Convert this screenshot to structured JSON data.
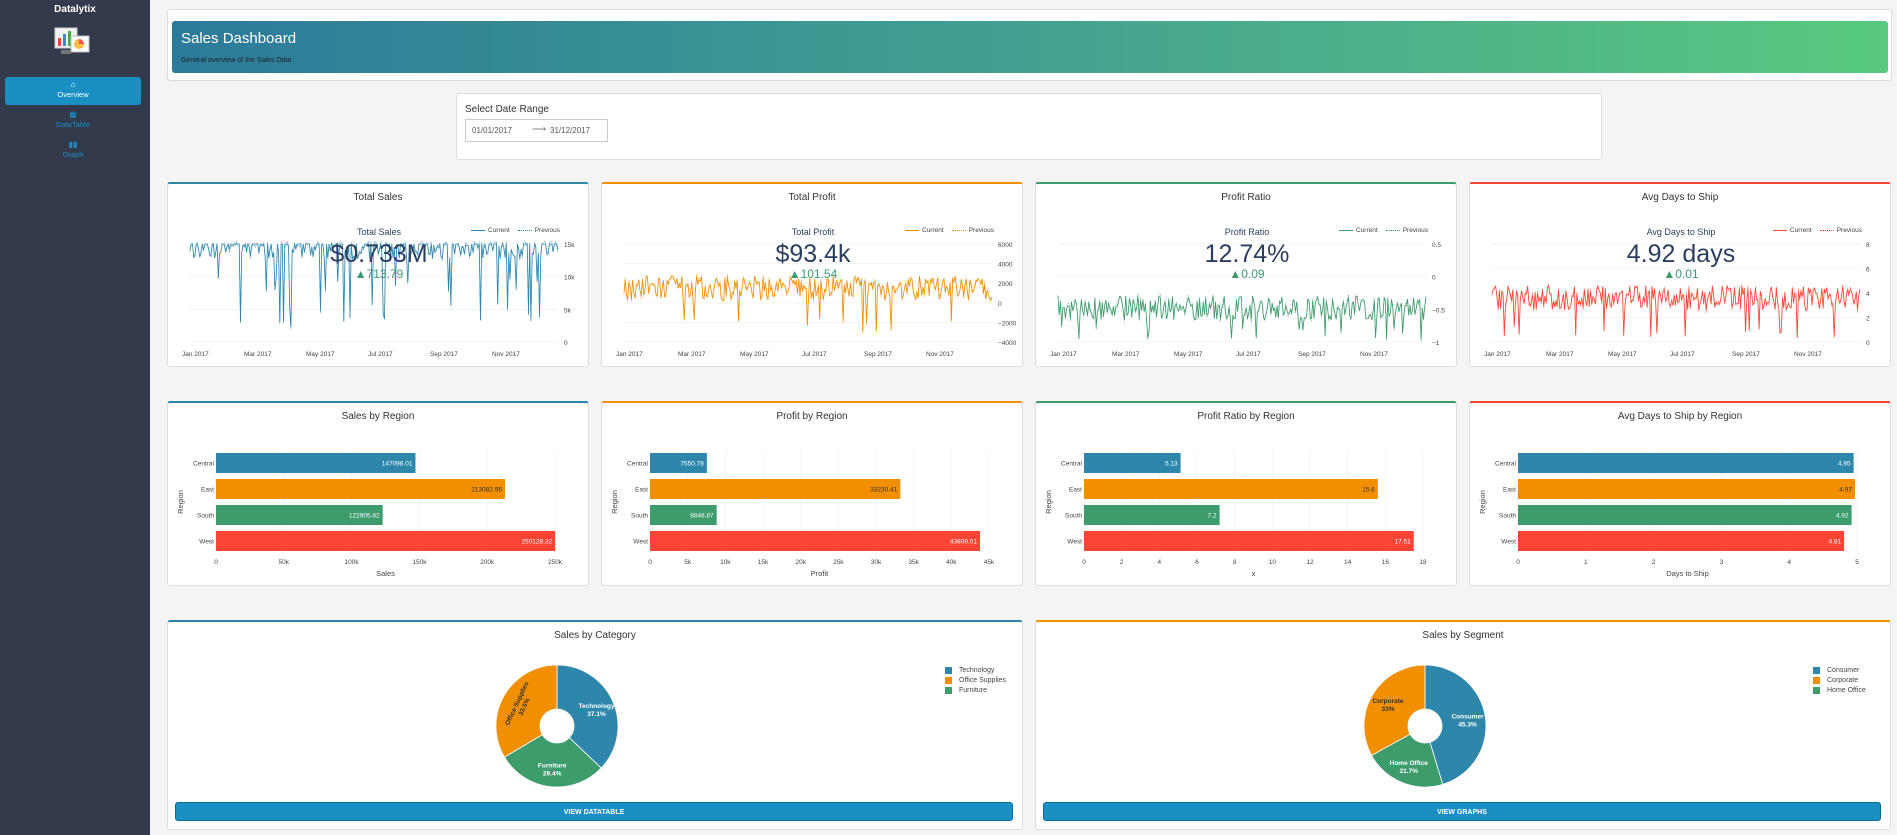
{
  "app": {
    "brand": "Datalytix"
  },
  "sidebar": {
    "items": [
      {
        "label": "Overview",
        "icon": "home-icon",
        "active": true
      },
      {
        "label": "DataTable",
        "icon": "table-icon",
        "active": false
      },
      {
        "label": "Graph",
        "icon": "bar-chart-icon",
        "active": false
      }
    ]
  },
  "header": {
    "title": "Sales Dashboard",
    "subtitle": "General overview of the Sales Data"
  },
  "date_range": {
    "label": "Select Date Range",
    "start": "01/01/2017",
    "end": "31/12/2017"
  },
  "colors": {
    "blue": "#2e86ab",
    "orange": "#f18f01",
    "green": "#3d9b6c",
    "red": "#fa4436"
  },
  "kpis": [
    {
      "card_title": "Total Sales",
      "title": "Total Sales",
      "value": "$0.733M",
      "delta": "▲713.79",
      "color": "#2e86ab",
      "yticks": [
        "15k",
        "10k",
        "5k",
        "0"
      ],
      "legend": [
        "Current",
        "Previous"
      ]
    },
    {
      "card_title": "Total Profit",
      "title": "Total Profit",
      "value": "$93.4k",
      "delta": "▲101.54",
      "color": "#f18f01",
      "yticks": [
        "6000",
        "4000",
        "2000",
        "0",
        "−2000",
        "−4000"
      ],
      "legend": [
        "Current",
        "Previous"
      ]
    },
    {
      "card_title": "Profit Ratio",
      "title": "Profit Ratio",
      "value": "12.74%",
      "delta": "▲0.09",
      "color": "#3d9b6c",
      "yticks": [
        "0.5",
        "0",
        "−0.5",
        "−1"
      ],
      "legend": [
        "Current",
        "Previous"
      ]
    },
    {
      "card_title": "Avg Days to Ship",
      "title": "Avg Days to Ship",
      "value": "4.92 days",
      "delta": "▲0.01",
      "color": "#fa4436",
      "yticks": [
        "8",
        "6",
        "4",
        "2",
        "0"
      ],
      "legend": [
        "Current",
        "Previous"
      ]
    }
  ],
  "x_months": [
    "Jan 2017",
    "Mar 2017",
    "May 2017",
    "Jul 2017",
    "Sep 2017",
    "Nov 2017"
  ],
  "chart_data": [
    {
      "type": "bar",
      "title": "Sales by Region",
      "categories": [
        "Central",
        "East",
        "South",
        "West"
      ],
      "values": [
        147098.01,
        213082.95,
        122905.82,
        250128.32
      ],
      "labels": [
        "147098.01",
        "213082.95",
        "122905.82",
        "250128.32"
      ],
      "xlabel": "Sales",
      "ylabel": "Region",
      "xlim": [
        0,
        250000
      ],
      "xticks": [
        0,
        50000,
        100000,
        150000,
        200000,
        250000
      ],
      "xtick_labels": [
        "0",
        "50k",
        "100k",
        "150k",
        "200k",
        "250k"
      ]
    },
    {
      "type": "bar",
      "title": "Profit by Region",
      "categories": [
        "Central",
        "East",
        "South",
        "West"
      ],
      "values": [
        7550.78,
        33230.41,
        8848.87,
        43809.01
      ],
      "labels": [
        "7550.78",
        "33230.41",
        "8848.87",
        "43809.01"
      ],
      "xlabel": "Profit",
      "ylabel": "Region",
      "xlim": [
        0,
        45000
      ],
      "xticks": [
        0,
        5000,
        10000,
        15000,
        20000,
        25000,
        30000,
        35000,
        40000,
        45000
      ],
      "xtick_labels": [
        "0",
        "5k",
        "10k",
        "15k",
        "20k",
        "25k",
        "30k",
        "35k",
        "40k",
        "45k"
      ]
    },
    {
      "type": "bar",
      "title": "Profit Ratio by Region",
      "categories": [
        "Central",
        "East",
        "South",
        "West"
      ],
      "values": [
        5.13,
        15.6,
        7.2,
        17.51
      ],
      "labels": [
        "5.13",
        "15.6",
        "7.2",
        "17.51"
      ],
      "xlabel": "x",
      "ylabel": "Region",
      "xlim": [
        0,
        18
      ],
      "xticks": [
        0,
        2,
        4,
        6,
        8,
        10,
        12,
        14,
        16,
        18
      ],
      "xtick_labels": [
        "0",
        "2",
        "4",
        "6",
        "8",
        "10",
        "12",
        "14",
        "16",
        "18"
      ]
    },
    {
      "type": "bar",
      "title": "Avg Days to Ship by Region",
      "categories": [
        "Central",
        "East",
        "South",
        "West"
      ],
      "values": [
        4.95,
        4.97,
        4.92,
        4.81
      ],
      "labels": [
        "4.95",
        "4.97",
        "4.92",
        "4.81"
      ],
      "xlabel": "Days to Ship",
      "ylabel": "Region",
      "xlim": [
        0,
        5
      ],
      "xticks": [
        0,
        1,
        2,
        3,
        4,
        5
      ],
      "xtick_labels": [
        "0",
        "1",
        "2",
        "3",
        "4",
        "5"
      ]
    },
    {
      "type": "pie",
      "title": "Sales by Category",
      "slices": [
        {
          "name": "Technology",
          "pct": "37.1%",
          "value": 37.1
        },
        {
          "name": "Furniture",
          "pct": "29.4%",
          "value": 29.4
        },
        {
          "name": "Office Supplies",
          "pct": "33.5%",
          "value": 33.5
        }
      ],
      "legend": [
        "Technology",
        "Office Supplies",
        "Furniture"
      ]
    },
    {
      "type": "pie",
      "title": "Sales by Segment",
      "slices": [
        {
          "name": "Consumer",
          "pct": "45.3%",
          "value": 45.3
        },
        {
          "name": "Home Office",
          "pct": "21.7%",
          "value": 21.7
        },
        {
          "name": "Corporate",
          "pct": "33%",
          "value": 33
        }
      ],
      "legend": [
        "Consumer",
        "Corporate",
        "Home Office"
      ]
    }
  ],
  "buttons": {
    "view_datatable": "VIEW DATATABLE",
    "view_graphs": "VIEW GRAPHS"
  }
}
